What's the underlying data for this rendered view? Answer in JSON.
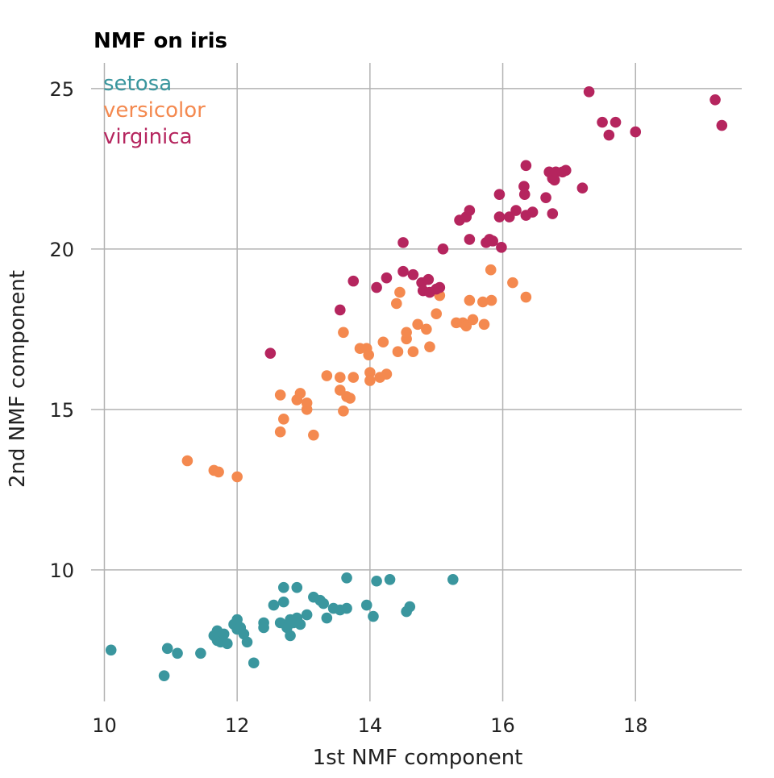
{
  "chart_data": {
    "type": "scatter",
    "title": "NMF on iris",
    "xlabel": "1st NMF component",
    "ylabel": "2nd NMF component",
    "xlim": [
      9.8,
      19.6
    ],
    "ylim": [
      5.9,
      25.8
    ],
    "xticks": [
      10,
      12,
      14,
      16,
      18
    ],
    "yticks": [
      10,
      15,
      20,
      25
    ],
    "grid": true,
    "legend": "top-left",
    "series": [
      {
        "name": "setosa",
        "color": "#3a969e",
        "points": [
          [
            10.1,
            7.5
          ],
          [
            10.9,
            6.7
          ],
          [
            10.95,
            7.55
          ],
          [
            11.1,
            7.4
          ],
          [
            11.45,
            7.4
          ],
          [
            11.65,
            7.95
          ],
          [
            11.7,
            8.1
          ],
          [
            11.7,
            7.8
          ],
          [
            11.75,
            7.75
          ],
          [
            11.8,
            8.0
          ],
          [
            11.85,
            7.7
          ],
          [
            11.95,
            8.3
          ],
          [
            12.0,
            8.45
          ],
          [
            12.0,
            8.15
          ],
          [
            12.05,
            8.2
          ],
          [
            12.1,
            8.0
          ],
          [
            12.15,
            7.75
          ],
          [
            12.25,
            7.1
          ],
          [
            12.4,
            8.35
          ],
          [
            12.4,
            8.2
          ],
          [
            12.55,
            8.9
          ],
          [
            12.65,
            8.35
          ],
          [
            12.7,
            9.0
          ],
          [
            12.7,
            9.45
          ],
          [
            12.75,
            8.2
          ],
          [
            12.8,
            8.45
          ],
          [
            12.8,
            7.95
          ],
          [
            12.85,
            8.35
          ],
          [
            12.9,
            9.45
          ],
          [
            12.9,
            8.5
          ],
          [
            12.95,
            8.3
          ],
          [
            13.05,
            8.6
          ],
          [
            13.15,
            9.15
          ],
          [
            13.25,
            9.05
          ],
          [
            13.3,
            8.95
          ],
          [
            13.35,
            8.5
          ],
          [
            13.45,
            8.8
          ],
          [
            13.55,
            8.75
          ],
          [
            13.65,
            9.75
          ],
          [
            13.65,
            8.8
          ],
          [
            13.95,
            8.9
          ],
          [
            14.05,
            8.55
          ],
          [
            14.1,
            9.65
          ],
          [
            14.3,
            9.7
          ],
          [
            14.55,
            8.7
          ],
          [
            14.6,
            8.85
          ],
          [
            15.25,
            9.7
          ]
        ]
      },
      {
        "name": "versicolor",
        "color": "#f4894f",
        "points": [
          [
            11.25,
            13.4
          ],
          [
            11.65,
            13.1
          ],
          [
            11.72,
            13.05
          ],
          [
            12.0,
            12.9
          ],
          [
            12.65,
            14.3
          ],
          [
            12.65,
            15.45
          ],
          [
            12.7,
            14.7
          ],
          [
            12.9,
            15.3
          ],
          [
            12.95,
            15.5
          ],
          [
            13.05,
            15.0
          ],
          [
            13.05,
            15.2
          ],
          [
            13.15,
            14.2
          ],
          [
            13.35,
            16.05
          ],
          [
            13.55,
            15.6
          ],
          [
            13.55,
            16.0
          ],
          [
            13.6,
            14.95
          ],
          [
            13.6,
            17.4
          ],
          [
            13.65,
            15.4
          ],
          [
            13.7,
            15.35
          ],
          [
            13.75,
            16.0
          ],
          [
            13.85,
            16.9
          ],
          [
            13.95,
            16.9
          ],
          [
            13.98,
            16.7
          ],
          [
            14.0,
            16.15
          ],
          [
            14.0,
            15.9
          ],
          [
            14.15,
            16.0
          ],
          [
            14.2,
            17.1
          ],
          [
            14.25,
            16.1
          ],
          [
            14.4,
            18.3
          ],
          [
            14.42,
            16.8
          ],
          [
            14.45,
            18.65
          ],
          [
            14.55,
            17.2
          ],
          [
            14.55,
            17.4
          ],
          [
            14.65,
            16.8
          ],
          [
            14.72,
            17.65
          ],
          [
            14.85,
            17.5
          ],
          [
            14.9,
            16.95
          ],
          [
            15.0,
            17.98
          ],
          [
            15.05,
            18.55
          ],
          [
            15.3,
            17.7
          ],
          [
            15.4,
            17.7
          ],
          [
            15.45,
            17.6
          ],
          [
            15.5,
            18.4
          ],
          [
            15.55,
            17.8
          ],
          [
            15.7,
            18.35
          ],
          [
            15.72,
            17.65
          ],
          [
            15.82,
            19.35
          ],
          [
            15.83,
            18.4
          ],
          [
            16.15,
            18.95
          ],
          [
            16.35,
            18.5
          ]
        ]
      },
      {
        "name": "virginica",
        "color": "#b5255e",
        "points": [
          [
            12.5,
            16.75
          ],
          [
            13.55,
            18.1
          ],
          [
            13.75,
            19.0
          ],
          [
            14.1,
            18.8
          ],
          [
            14.25,
            19.1
          ],
          [
            14.5,
            20.2
          ],
          [
            14.5,
            19.3
          ],
          [
            14.65,
            19.2
          ],
          [
            14.78,
            18.95
          ],
          [
            14.8,
            18.7
          ],
          [
            14.88,
            19.05
          ],
          [
            14.9,
            18.65
          ],
          [
            15.0,
            18.75
          ],
          [
            15.05,
            18.8
          ],
          [
            15.1,
            20.0
          ],
          [
            15.35,
            20.9
          ],
          [
            15.45,
            21.0
          ],
          [
            15.5,
            21.2
          ],
          [
            15.5,
            20.3
          ],
          [
            15.95,
            21.7
          ],
          [
            15.95,
            21.0
          ],
          [
            15.98,
            20.05
          ],
          [
            15.75,
            20.2
          ],
          [
            15.8,
            20.3
          ],
          [
            15.85,
            20.25
          ],
          [
            16.1,
            21.0
          ],
          [
            16.2,
            21.2
          ],
          [
            16.32,
            21.95
          ],
          [
            16.33,
            21.7
          ],
          [
            16.35,
            22.6
          ],
          [
            16.35,
            21.05
          ],
          [
            16.45,
            21.15
          ],
          [
            16.65,
            21.6
          ],
          [
            16.7,
            22.4
          ],
          [
            16.75,
            22.2
          ],
          [
            16.78,
            22.15
          ],
          [
            16.8,
            22.4
          ],
          [
            16.75,
            21.1
          ],
          [
            16.95,
            22.45
          ],
          [
            16.9,
            22.4
          ],
          [
            17.2,
            21.9
          ],
          [
            17.3,
            24.9
          ],
          [
            17.5,
            23.95
          ],
          [
            17.6,
            23.55
          ],
          [
            17.7,
            23.95
          ],
          [
            18.0,
            23.65
          ],
          [
            19.2,
            24.65
          ],
          [
            19.3,
            23.85
          ]
        ]
      }
    ]
  }
}
